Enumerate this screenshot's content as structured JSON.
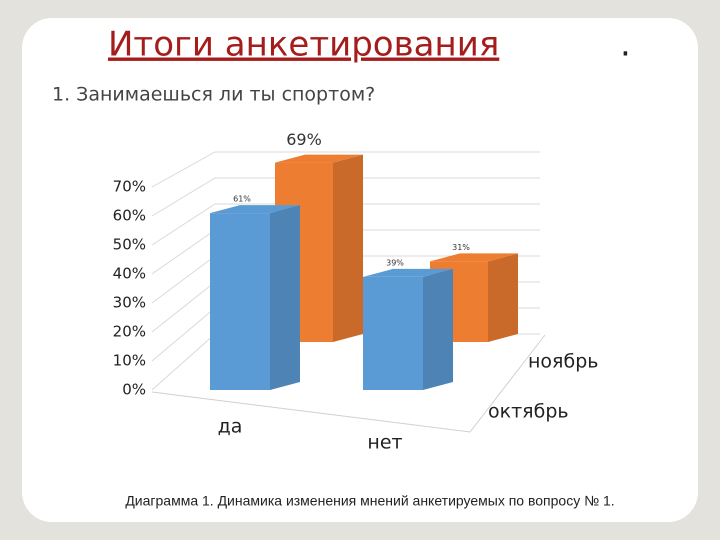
{
  "chart_data": {
    "type": "bar3d",
    "title": "Итоги анкетирования",
    "title_punct": ".",
    "subtitle": "1. Занимаешься ли ты спортом?",
    "caption": "Диаграмма 1. Динамика изменения мнений анкетируемых по вопросу № 1.",
    "categories": [
      "да",
      "нет"
    ],
    "series": [
      {
        "name": "октябрь",
        "color": "#5b9bd5",
        "values": [
          61,
          39
        ],
        "value_labels": [
          "61%",
          "39%"
        ]
      },
      {
        "name": "ноябрь",
        "color": "#ed7d31",
        "values": [
          69,
          31
        ],
        "value_labels": [
          "69%",
          "31%"
        ]
      }
    ],
    "ylim": [
      0,
      70
    ],
    "yticks": [
      {
        "value": 0,
        "label": "0%"
      },
      {
        "value": 10,
        "label": "10%"
      },
      {
        "value": 20,
        "label": "20%"
      },
      {
        "value": 30,
        "label": "30%"
      },
      {
        "value": 40,
        "label": "40%"
      },
      {
        "value": 50,
        "label": "50%"
      },
      {
        "value": 60,
        "label": "60%"
      },
      {
        "value": 70,
        "label": "70%"
      }
    ],
    "grid": true
  }
}
